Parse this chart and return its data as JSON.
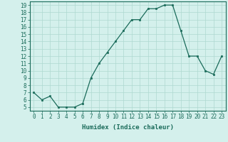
{
  "xlabel": "Humidex (Indice chaleur)",
  "x_values": [
    0,
    1,
    2,
    3,
    4,
    5,
    6,
    7,
    8,
    9,
    10,
    11,
    12,
    13,
    14,
    15,
    16,
    17,
    18,
    19,
    20,
    21,
    22,
    23
  ],
  "y_values": [
    7,
    6,
    6.5,
    5,
    5,
    5,
    5.5,
    9,
    11,
    12.5,
    14,
    15.5,
    17,
    17,
    18.5,
    18.5,
    19,
    19,
    15.5,
    12,
    12,
    10,
    9.5,
    12
  ],
  "ylim_min": 4.5,
  "ylim_max": 19.5,
  "xlim_min": -0.5,
  "xlim_max": 23.5,
  "yticks": [
    5,
    6,
    7,
    8,
    9,
    10,
    11,
    12,
    13,
    14,
    15,
    16,
    17,
    18,
    19
  ],
  "xticks": [
    0,
    1,
    2,
    3,
    4,
    5,
    6,
    7,
    8,
    9,
    10,
    11,
    12,
    13,
    14,
    15,
    16,
    17,
    18,
    19,
    20,
    21,
    22,
    23
  ],
  "line_color": "#1a6b5a",
  "marker_color": "#1a6b5a",
  "bg_color": "#d4f0ec",
  "grid_color": "#aed8d0",
  "axis_color": "#1a6b5a",
  "label_color": "#1a6b5a",
  "font_name": "monospace",
  "tick_fontsize": 5.5,
  "xlabel_fontsize": 6.5
}
